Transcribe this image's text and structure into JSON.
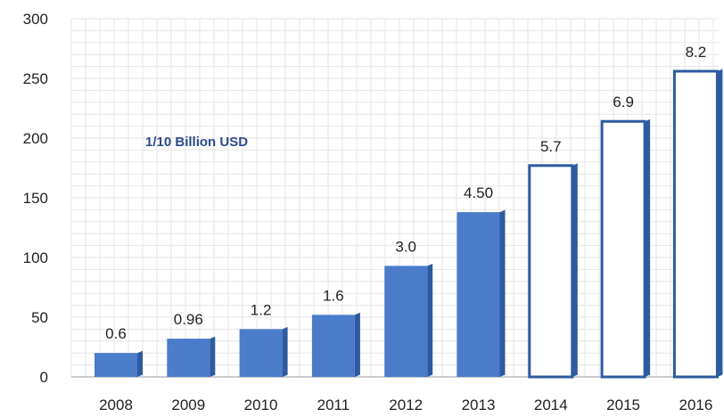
{
  "chart_data": {
    "type": "bar",
    "title": "",
    "annotation": "1/10 Billion USD",
    "xlabel": "",
    "ylabel": "",
    "ylim": [
      0,
      300
    ],
    "yticks": [
      0,
      50,
      100,
      150,
      200,
      250,
      300
    ],
    "grid": true,
    "categories": [
      "2008",
      "2009",
      "2010",
      "2011",
      "2012",
      "2013",
      "2014",
      "2015",
      "2016"
    ],
    "values": [
      20,
      32,
      40,
      52,
      93,
      138,
      177,
      214,
      256
    ],
    "data_labels": [
      "0.6",
      "0.96",
      "1.2",
      "1.6",
      "3.0",
      "4.50",
      "5.7",
      "6.9",
      "8.2"
    ],
    "bar_styles": [
      "filled",
      "filled",
      "filled",
      "filled",
      "filled",
      "filled",
      "outline",
      "outline",
      "outline"
    ],
    "colors": {
      "filled": "#4a7cc9",
      "filled_side": "#2e5aa0",
      "outline_stroke": "#2e5aa0",
      "outline_fill": "#ffffff",
      "grid": "#e6e6e6"
    }
  }
}
